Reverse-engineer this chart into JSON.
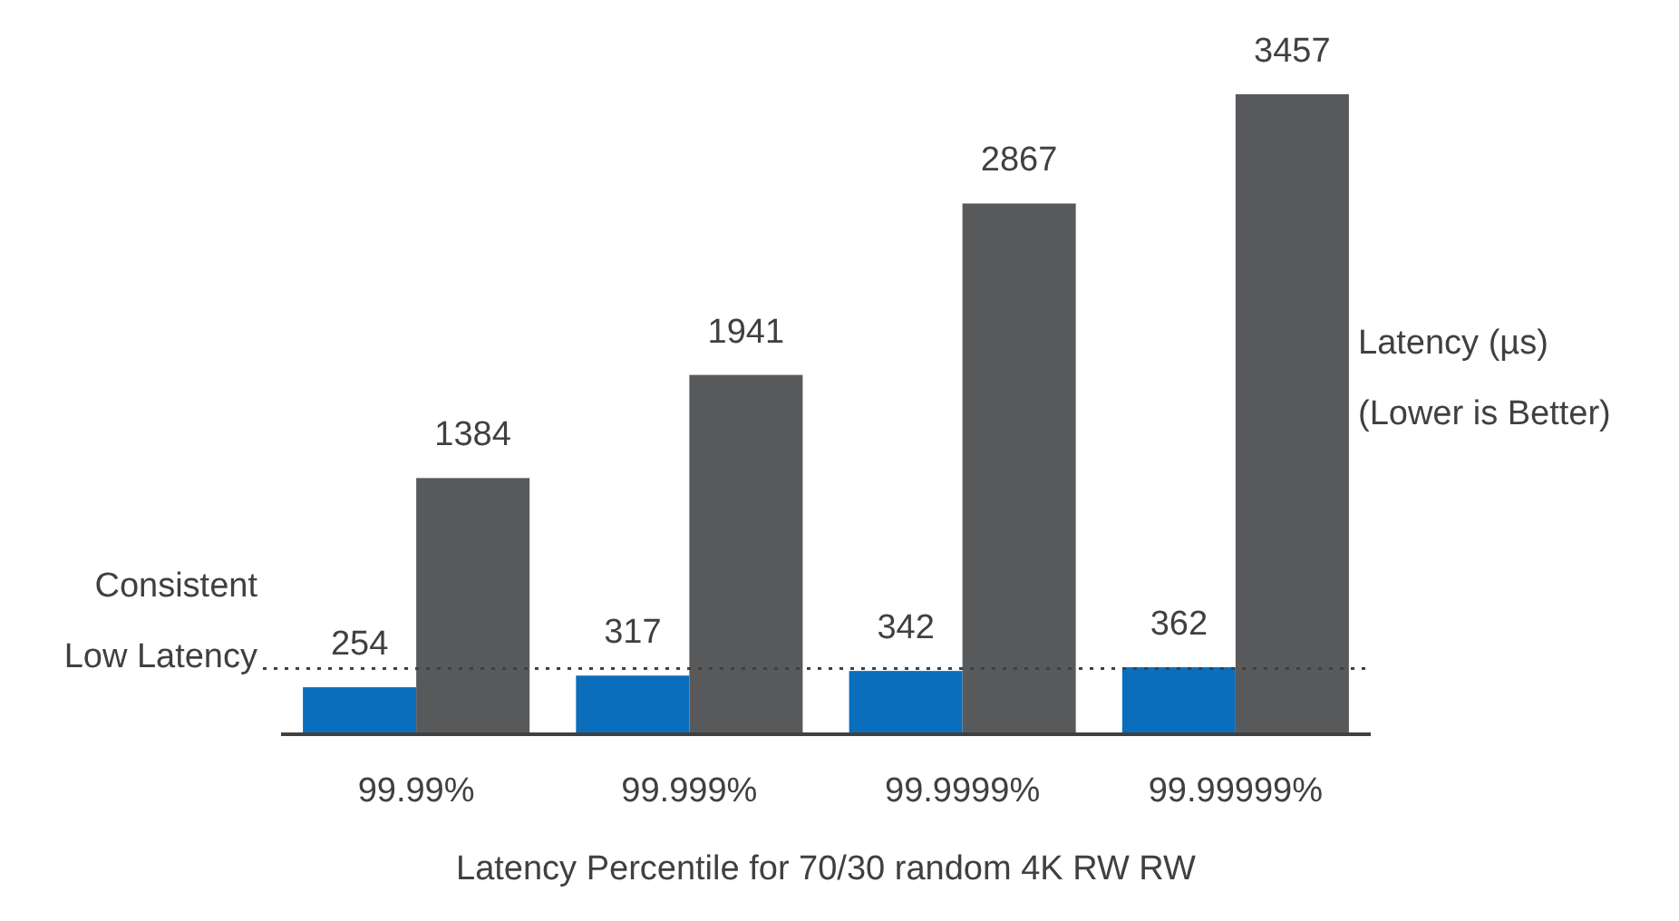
{
  "chart_data": {
    "type": "bar",
    "xlabel": "Latency Percentile for 70/30 random 4K RW RW",
    "ylabel": "Latency (µs)\n(Lower is Better)",
    "categories": [
      "99.99%",
      "99.999%",
      "99.9999%",
      "99.99999%"
    ],
    "series": [
      {
        "color": "#0a6ebd",
        "values": [
          254,
          317,
          342,
          362
        ]
      },
      {
        "color": "#58595b",
        "values": [
          1384,
          1941,
          2867,
          3457
        ]
      }
    ],
    "tick_labels": "x",
    "data_labels": true,
    "ref_lines": [
      {
        "axis": "y",
        "value": 355,
        "label": "Consistent\nLow Latency",
        "line_style": "dotted",
        "color": "#404040"
      }
    ]
  }
}
